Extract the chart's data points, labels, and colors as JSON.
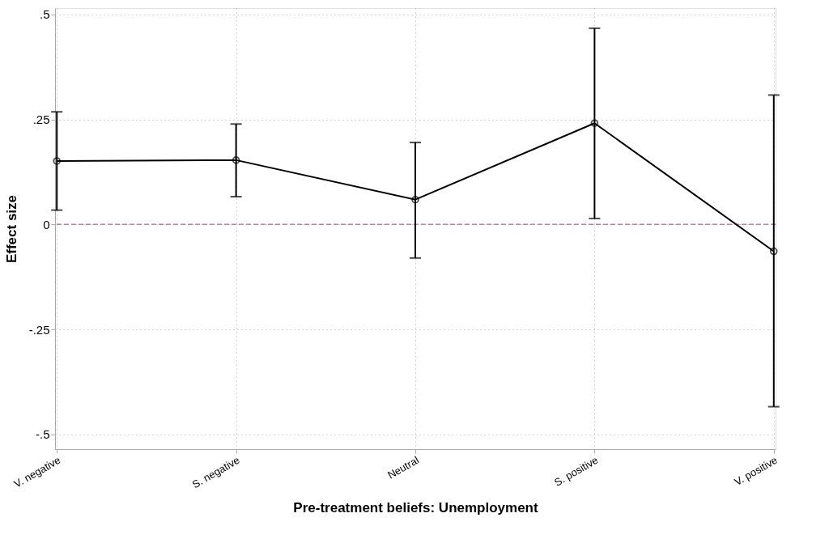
{
  "chart_data": {
    "type": "line",
    "xlabel": "Pre-treatment beliefs: Unemployment",
    "ylabel": "Effect size",
    "categories": [
      "V. negative",
      "S. negative",
      "Neutral",
      "S. positive",
      "V. positive"
    ],
    "series": [
      {
        "color": "#000000",
        "values": [
          0.151,
          0.153,
          0.059,
          0.241,
          -0.064
        ],
        "errors": [
          [
            0.034,
            0.268
          ],
          [
            0.066,
            0.239
          ],
          [
            -0.08,
            0.195
          ],
          [
            0.014,
            0.467
          ],
          [
            -0.434,
            0.308
          ]
        ]
      }
    ],
    "ylim": [
      -0.535,
      0.515
    ],
    "yticks": [
      {
        "value": -0.5,
        "label": "-.5"
      },
      {
        "value": -0.25,
        "label": "-.25"
      },
      0,
      {
        "value": 0.25,
        "label": ".25"
      },
      {
        "value": 0.5,
        "label": ".5"
      }
    ],
    "ref_lines": [
      {
        "axis": "y",
        "value": 0,
        "color": "#c87bb0",
        "line_style": "dashed"
      }
    ],
    "grid": true,
    "marker": "circle",
    "line_style": "solid"
  }
}
